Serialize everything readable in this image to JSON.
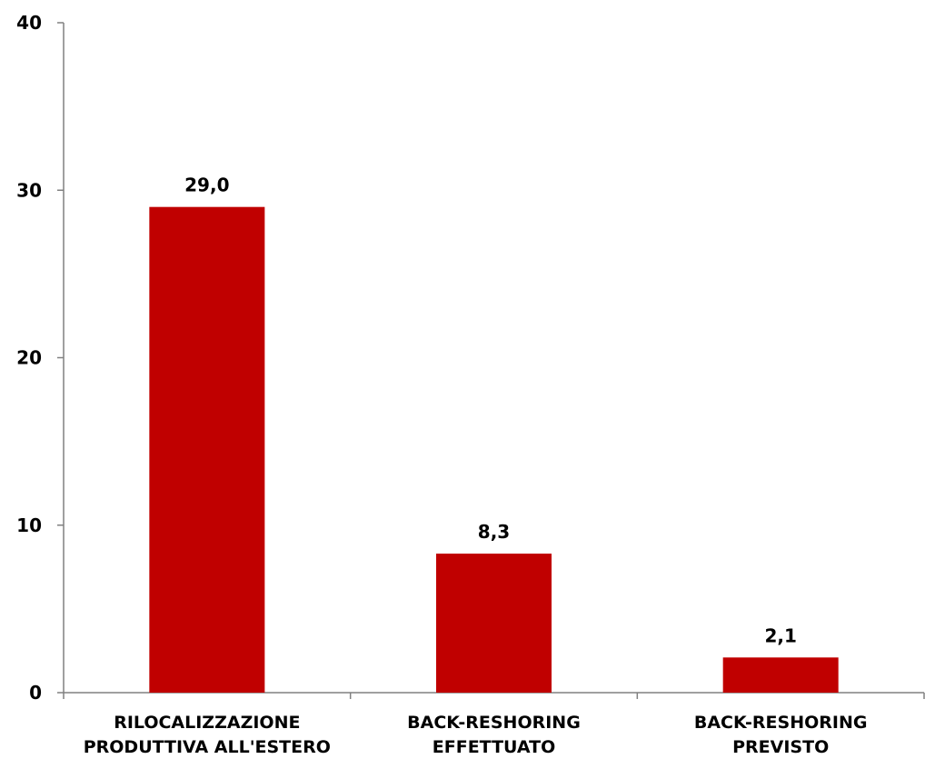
{
  "chart_data": {
    "type": "bar",
    "categories": [
      [
        "RILOCALIZZAZIONE",
        "PRODUTTIVA ALL'ESTERO"
      ],
      [
        "BACK-RESHORING",
        "EFFETTUATO"
      ],
      [
        "BACK-RESHORING",
        "PREVISTO"
      ]
    ],
    "values": [
      29.0,
      8.3,
      2.1
    ],
    "data_labels": [
      "29,0",
      "8,3",
      "2,1"
    ],
    "ylim": [
      0,
      40
    ],
    "yticks": [
      0,
      10,
      20,
      30,
      40
    ],
    "ytick_labels": [
      "0",
      "10",
      "20",
      "30",
      "40"
    ],
    "bar_color": "#C00000",
    "grid": false,
    "title": "",
    "xlabel": "",
    "ylabel": ""
  }
}
